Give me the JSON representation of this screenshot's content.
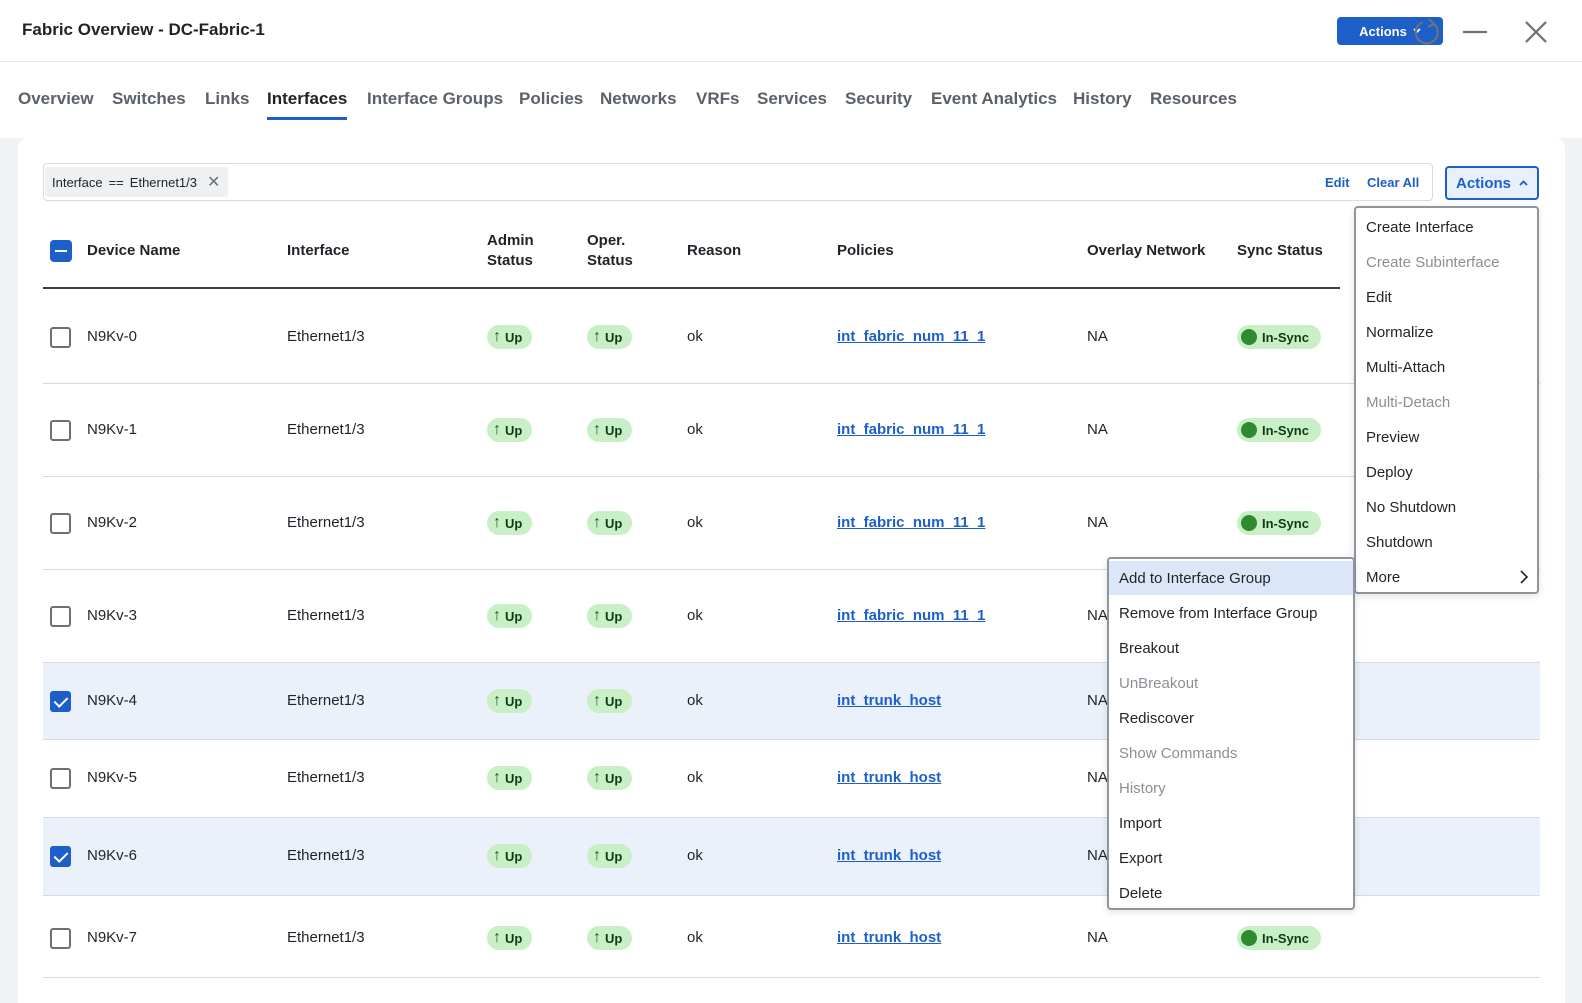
{
  "window": {
    "title": "Fabric Overview - DC-Fabric-1",
    "actions_label": "Actions"
  },
  "tabs": [
    "Overview",
    "Switches",
    "Links",
    "Interfaces",
    "Interface Groups",
    "Policies",
    "Networks",
    "VRFs",
    "Services",
    "Security",
    "Event Analytics",
    "History",
    "Resources"
  ],
  "active_tab": "Interfaces",
  "filter": {
    "chip_field": "Interface",
    "chip_op": "==",
    "chip_value": "Ethernet1/3",
    "edit_label": "Edit",
    "clear_all_label": "Clear All",
    "actions_label": "Actions"
  },
  "table": {
    "headers": {
      "device_name": "Device Name",
      "interface": "Interface",
      "admin_status_1": "Admin",
      "admin_status_2": "Status",
      "oper_status_1": "Oper.",
      "oper_status_2": "Status",
      "reason": "Reason",
      "policies": "Policies",
      "overlay_network": "Overlay Network",
      "sync_status": "Sync Status"
    },
    "rows": [
      {
        "device": "N9Kv-0",
        "interface": "Ethernet1/3",
        "admin": "Up",
        "oper": "Up",
        "reason": "ok",
        "policy": "int_fabric_num_11_1",
        "overlay": "NA",
        "sync": "In-Sync",
        "selected": false
      },
      {
        "device": "N9Kv-1",
        "interface": "Ethernet1/3",
        "admin": "Up",
        "oper": "Up",
        "reason": "ok",
        "policy": "int_fabric_num_11_1",
        "overlay": "NA",
        "sync": "In-Sync",
        "selected": false
      },
      {
        "device": "N9Kv-2",
        "interface": "Ethernet1/3",
        "admin": "Up",
        "oper": "Up",
        "reason": "ok",
        "policy": "int_fabric_num_11_1",
        "overlay": "NA",
        "sync": "In-Sync",
        "selected": false
      },
      {
        "device": "N9Kv-3",
        "interface": "Ethernet1/3",
        "admin": "Up",
        "oper": "Up",
        "reason": "ok",
        "policy": "int_fabric_num_11_1",
        "overlay": "NA",
        "sync": "",
        "selected": false
      },
      {
        "device": "N9Kv-4",
        "interface": "Ethernet1/3",
        "admin": "Up",
        "oper": "Up",
        "reason": "ok",
        "policy": "int_trunk_host",
        "overlay": "NA",
        "sync": "",
        "selected": true
      },
      {
        "device": "N9Kv-5",
        "interface": "Ethernet1/3",
        "admin": "Up",
        "oper": "Up",
        "reason": "ok",
        "policy": "int_trunk_host",
        "overlay": "NA",
        "sync": "",
        "selected": false
      },
      {
        "device": "N9Kv-6",
        "interface": "Ethernet1/3",
        "admin": "Up",
        "oper": "Up",
        "reason": "ok",
        "policy": "int_trunk_host",
        "overlay": "NA",
        "sync": "",
        "selected": true
      },
      {
        "device": "N9Kv-7",
        "interface": "Ethernet1/3",
        "admin": "Up",
        "oper": "Up",
        "reason": "ok",
        "policy": "int_trunk_host",
        "overlay": "NA",
        "sync": "In-Sync",
        "selected": false
      }
    ]
  },
  "actions_menu": [
    {
      "label": "Create Interface",
      "disabled": false
    },
    {
      "label": "Create Subinterface",
      "disabled": true
    },
    {
      "label": "Edit",
      "disabled": false
    },
    {
      "label": "Normalize",
      "disabled": false
    },
    {
      "label": "Multi-Attach",
      "disabled": false
    },
    {
      "label": "Multi-Detach",
      "disabled": true
    },
    {
      "label": "Preview",
      "disabled": false
    },
    {
      "label": "Deploy",
      "disabled": false
    },
    {
      "label": "No Shutdown",
      "disabled": false
    },
    {
      "label": "Shutdown",
      "disabled": false
    },
    {
      "label": "More",
      "disabled": false,
      "submenu": true
    }
  ],
  "more_submenu": [
    {
      "label": "Add to Interface Group",
      "disabled": false,
      "highlighted": true
    },
    {
      "label": "Remove from Interface Group",
      "disabled": false
    },
    {
      "label": "Breakout",
      "disabled": false
    },
    {
      "label": "UnBreakout",
      "disabled": true
    },
    {
      "label": "Rediscover",
      "disabled": false
    },
    {
      "label": "Show Commands",
      "disabled": true
    },
    {
      "label": "History",
      "disabled": true
    },
    {
      "label": "Import",
      "disabled": false
    },
    {
      "label": "Export",
      "disabled": false
    },
    {
      "label": "Delete",
      "disabled": false
    }
  ],
  "colors": {
    "accent": "#1d5fc9",
    "status_green": "#c9efc6",
    "selected_row": "#ebf1fb"
  }
}
